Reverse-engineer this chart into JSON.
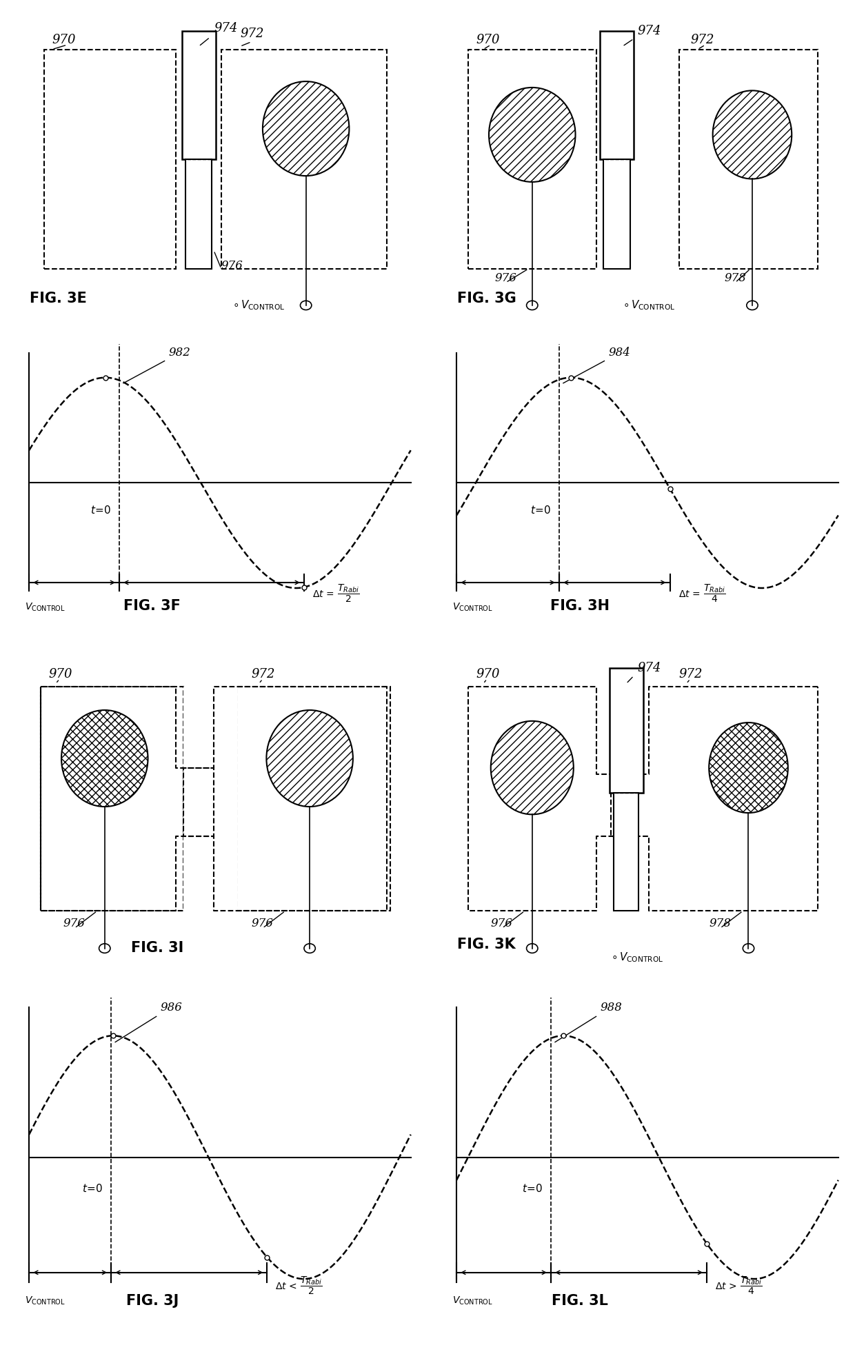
{
  "background": "#ffffff",
  "fig_labels": [
    "FIG. 3E",
    "FIG. 3F",
    "FIG. 3G",
    "FIG. 3H",
    "FIG. 3I",
    "FIG. 3J",
    "FIG. 3K",
    "FIG. 3L"
  ],
  "wave_labels": [
    "982",
    "984",
    "986",
    "988"
  ],
  "num_970": "970",
  "num_972": "972",
  "num_974": "974",
  "num_976": "976",
  "num_978": "978",
  "delta_labels": [
    {
      "sym": "=",
      "frac": "T_{Rabi}",
      "den": "2"
    },
    {
      "sym": "=",
      "frac": "T_{Rabi}",
      "den": "4"
    },
    {
      "sym": "<",
      "frac": "T_{Rabi}",
      "den": "2"
    },
    {
      "sym": ">",
      "frac": "T_{Rabi}",
      "den": "4"
    }
  ]
}
